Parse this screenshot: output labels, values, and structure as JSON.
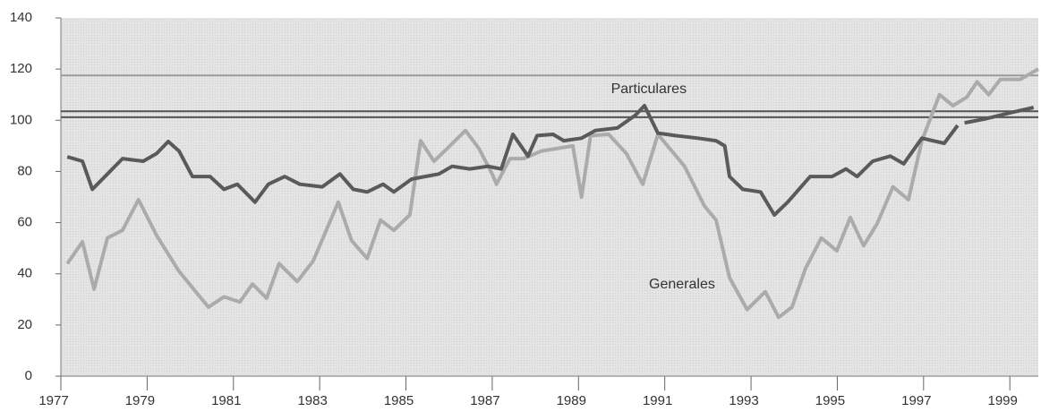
{
  "chart_data": {
    "type": "line",
    "xlim": [
      1977,
      1999.66
    ],
    "xticks": [
      1977,
      1979,
      1981,
      1983,
      1985,
      1987,
      1989,
      1991,
      1993,
      1995,
      1997,
      1999
    ],
    "ylim": [
      0,
      140
    ],
    "yticks": [
      0,
      20,
      40,
      60,
      80,
      100,
      120,
      140
    ],
    "reference_lines": [
      {
        "value": 117.5,
        "color": "#9a9a9a"
      },
      {
        "value": 103.5,
        "color": "#555555"
      },
      {
        "value": 101.2,
        "color": "#555555"
      }
    ],
    "annotations": [
      {
        "text": "Particulares",
        "x": 1990.63,
        "y": 112
      },
      {
        "text": "Generales",
        "x": 1991.4,
        "y": 35.7
      }
    ],
    "series": [
      {
        "name": "Particulares",
        "color": "#5a5a5a",
        "x": [
          1977.15,
          1977.5,
          1977.73,
          1978.08,
          1978.43,
          1978.91,
          1979.22,
          1979.49,
          1979.74,
          1980.05,
          1980.46,
          1980.78,
          1981.09,
          1981.5,
          1981.81,
          1982.19,
          1982.54,
          1983.06,
          1983.47,
          1983.78,
          1984.1,
          1984.47,
          1984.72,
          1985.13,
          1985.44,
          1985.76,
          1986.07,
          1986.48,
          1986.9,
          1987.21,
          1987.48,
          1987.83,
          1988.04,
          1988.41,
          1988.66,
          1989.07,
          1989.39,
          1989.9,
          1990.32,
          1990.53,
          1990.84,
          1991.25,
          1991.77,
          1992.19,
          1992.39,
          1992.5,
          1992.81,
          1993.22,
          1993.54,
          1993.85,
          1994.37,
          1994.88,
          1995.2,
          1995.46,
          1995.82,
          1996.23,
          1996.54,
          1996.96,
          1997.48,
          1997.79,
          1997.87,
          1997.95,
          1998.41,
          1999.03,
          1999.55
        ],
        "values": [
          85.7,
          84,
          73,
          79,
          85,
          84,
          87,
          91.7,
          88,
          78,
          78,
          73,
          75,
          68,
          75,
          78,
          75,
          74,
          79,
          73,
          72,
          75,
          72,
          77,
          78,
          79,
          82,
          81,
          82,
          81,
          94.5,
          86,
          94,
          94.5,
          92,
          93,
          96,
          97,
          102,
          105.7,
          95,
          94,
          93,
          92,
          90,
          78,
          73,
          72,
          63,
          68,
          78,
          78,
          81,
          78,
          84,
          86,
          83,
          93,
          91,
          98,
          null,
          99,
          100.5,
          103,
          105
        ]
      },
      {
        "name": "Generales",
        "color": "#ababab",
        "x": [
          1977.15,
          1977.5,
          1977.77,
          1978.08,
          1978.43,
          1978.8,
          1979.22,
          1979.74,
          1980.42,
          1980.78,
          1981.15,
          1981.44,
          1981.77,
          1982.06,
          1982.48,
          1982.85,
          1983.43,
          1983.74,
          1984.1,
          1984.41,
          1984.72,
          1985.09,
          1985.34,
          1985.65,
          1985.96,
          1986.38,
          1986.69,
          1987.0,
          1987.1,
          1987.41,
          1987.73,
          1988.14,
          1988.87,
          1989.07,
          1989.28,
          1989.7,
          1990.11,
          1990.49,
          1990.84,
          1991.46,
          1991.92,
          1992.19,
          1992.5,
          1992.91,
          1993.33,
          1993.64,
          1993.95,
          1994.26,
          1994.63,
          1994.99,
          1995.3,
          1995.61,
          1995.92,
          1996.29,
          1996.65,
          1996.96,
          1997.37,
          1997.68,
          1998.0,
          1998.24,
          1998.51,
          1998.78,
          1999.24,
          1999.66
        ],
        "values": [
          44,
          52.5,
          34,
          54,
          57,
          69,
          55,
          41,
          27,
          31,
          29,
          36,
          30.5,
          44,
          37,
          45,
          68,
          53,
          46,
          61,
          57,
          63,
          92,
          84,
          89,
          96,
          89,
          79,
          75,
          85,
          85,
          88,
          90,
          70,
          94,
          94.5,
          87,
          75,
          94.5,
          82,
          66.5,
          61,
          38.5,
          26,
          33,
          23,
          27,
          42,
          54,
          49,
          62,
          51,
          59.5,
          74,
          69,
          92,
          110,
          105.7,
          109,
          115,
          110,
          116,
          116,
          120
        ]
      }
    ]
  }
}
